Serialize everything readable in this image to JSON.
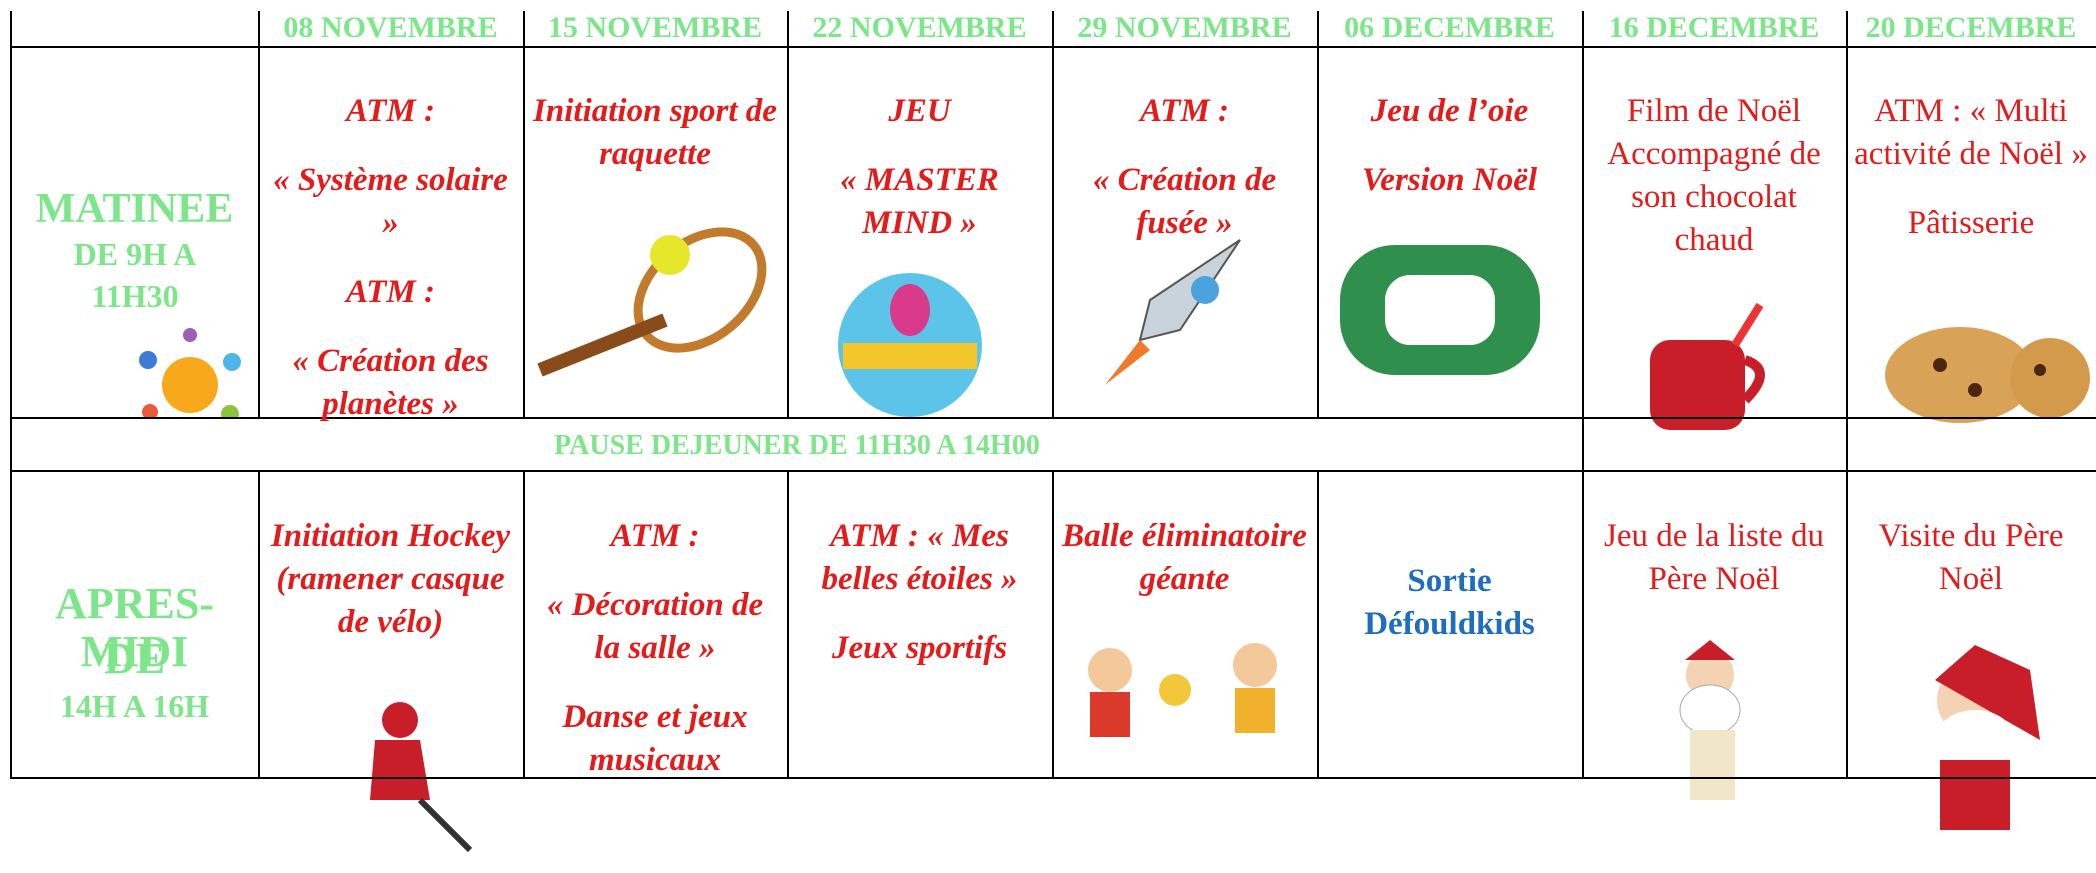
{
  "header": {
    "dates": [
      "08 NOVEMBRE",
      "15 NOVEMBRE",
      "22 NOVEMBRE",
      "29 NOVEMBRE",
      "06 DECEMBRE",
      "16 DECEMBRE",
      "20 DECEMBRE"
    ]
  },
  "morning": {
    "label": "MATINEE",
    "hours": "DE 9H A 11H30",
    "cells": [
      [
        "ATM :",
        "« Système solaire »",
        "ATM :",
        "« Création des planètes »"
      ],
      [
        "Initiation sport de raquette"
      ],
      [
        "JEU",
        "« MASTER MIND »"
      ],
      [
        "ATM :",
        "« Création de fusée »"
      ],
      [
        "Jeu de l’oie",
        "Version Noël"
      ],
      [
        "Film de Noël Accompagné de son chocolat chaud"
      ],
      [
        "ATM : « Multi activité de Noël »",
        "Pâtisserie"
      ]
    ]
  },
  "pause": "PAUSE DEJEUNER DE 11H30 A 14H00",
  "afternoon": {
    "label": "APRES-MIDI",
    "hours_prefix": "DE",
    "hours": "14H A 16H",
    "cells": [
      [
        "Initiation Hockey (ramener casque de vélo)"
      ],
      [
        "ATM :",
        "« Décoration de la salle »",
        "Danse et jeux musicaux"
      ],
      [
        "ATM : « Mes belles étoiles »",
        "Jeux sportifs"
      ],
      [
        "Balle éliminatoire géante"
      ],
      [
        "Sortie Défouldkids"
      ],
      [
        "Jeu de la liste du Père Noël"
      ],
      [
        "Visite du Père Noël"
      ]
    ]
  }
}
